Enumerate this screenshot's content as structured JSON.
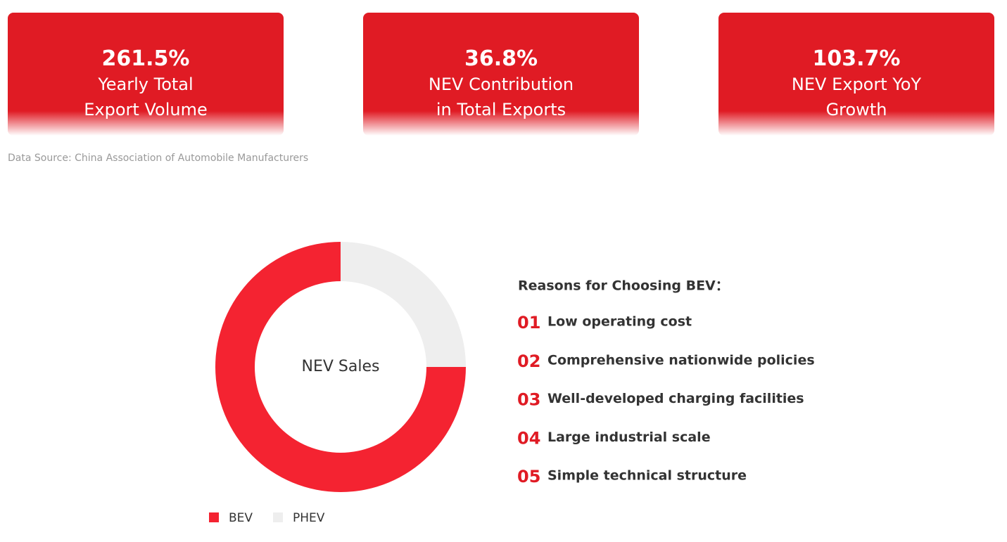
{
  "stats": [
    {
      "value": "261.5%",
      "lines": [
        "Yearly Total",
        "Export Volume"
      ]
    },
    {
      "value": "36.8%",
      "lines": [
        "NEV Contribution",
        "in Total Exports"
      ]
    },
    {
      "value": "103.7%",
      "lines": [
        "NEV Export YoY",
        "Growth"
      ]
    }
  ],
  "source": "Data Source: China Association of Automobile Manufacturers",
  "chart_data": {
    "type": "pie",
    "center_label": "NEV Sales",
    "categories": [
      "BEV",
      "PHEV"
    ],
    "values": [
      75,
      25
    ],
    "colors": [
      "#f42331",
      "#eeeeee"
    ]
  },
  "reasons": {
    "title": "Reasons for Choosing BEV：",
    "items": [
      {
        "number": "01",
        "text": "Low operating cost"
      },
      {
        "number": "02",
        "text": "Comprehensive nationwide policies"
      },
      {
        "number": "03",
        "text": "Well-developed charging facilities"
      },
      {
        "number": "04",
        "text": "Large industrial scale"
      },
      {
        "number": "05",
        "text": "Simple technical structure"
      }
    ]
  }
}
